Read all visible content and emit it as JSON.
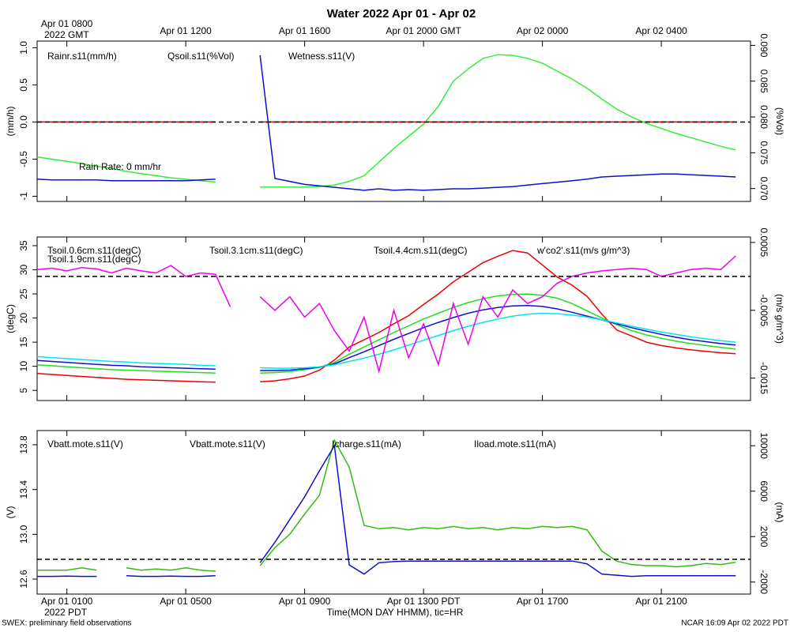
{
  "title": "Water 2022 Apr 01 - Apr 02",
  "xlabel": "Time(MON DAY HHMM), tic=HR",
  "footer_left": "SWEX: preliminary field observations",
  "footer_right": "NCAR 16:09 Apr 02 2022 PDT",
  "time_axis": {
    "xlim": [
      0,
      24
    ],
    "xticks": [
      {
        "value": 1,
        "label": "Apr 01 0100"
      },
      {
        "value": 5,
        "label": "Apr 01 0500"
      },
      {
        "value": 9,
        "label": "Apr 01 0900"
      },
      {
        "value": 13,
        "label": "Apr 01 1300 PDT"
      },
      {
        "value": 17,
        "label": "Apr 01 1700"
      },
      {
        "value": 21,
        "label": "Apr 01 2100"
      }
    ],
    "x_year_label": "2022 PDT",
    "x2ticks": [
      {
        "value": 1,
        "label": "Apr 01 0800"
      },
      {
        "value": 5,
        "label": "Apr 01 1200"
      },
      {
        "value": 9,
        "label": "Apr 01 1600"
      },
      {
        "value": 13,
        "label": "Apr 01 2000 GMT"
      },
      {
        "value": 17,
        "label": "Apr 02 0000"
      },
      {
        "value": 21,
        "label": "Apr 02 0400"
      }
    ],
    "x2_year_label": "2022 GMT"
  },
  "chart_data": [
    {
      "type": "line",
      "ylabel": "(mm/h)",
      "y2label": "(%Vol)",
      "ylim": [
        -1.07,
        1.09
      ],
      "yticks": [
        {
          "value": -1,
          "label": "-1"
        },
        -0.5,
        {
          "value": 0,
          "label": "0.0"
        },
        0.5,
        {
          "value": 1,
          "label": "1.0"
        }
      ],
      "y2lim": [
        0.0682,
        0.0906
      ],
      "y2ticks": [
        {
          "value": 0.07,
          "label": "0.070"
        },
        0.075,
        {
          "value": 0.08,
          "label": "0.080"
        },
        0.085,
        {
          "value": 0.09,
          "label": "0.090"
        }
      ],
      "zero_line": "y",
      "annotation": "Rain Rate: 0 mm/hr",
      "x": [
        0,
        0.5,
        1,
        1.5,
        2,
        2.5,
        3,
        3.5,
        4,
        4.5,
        5,
        5.5,
        6,
        6.5,
        7,
        7.5,
        8,
        8.5,
        9,
        9.5,
        10,
        10.5,
        11,
        11.5,
        12,
        12.5,
        13,
        13.5,
        14,
        14.5,
        15,
        15.5,
        16,
        16.5,
        17,
        17.5,
        18,
        18.5,
        19,
        19.5,
        20,
        20.5,
        21,
        21.5,
        22,
        22.5,
        23,
        23.5
      ],
      "series": [
        {
          "name": "Rainr.s11(mm/h)",
          "color": "#ee0000",
          "axis": "y",
          "values": [
            0,
            0,
            0,
            0,
            0,
            0,
            0,
            0,
            0,
            0,
            0,
            0,
            0,
            null,
            null,
            0,
            0,
            0,
            0,
            0,
            0,
            0,
            0,
            0,
            0,
            0,
            0,
            0,
            0,
            0,
            0,
            0,
            0,
            0,
            0,
            0,
            0,
            0,
            0,
            0,
            0,
            0,
            0,
            0,
            0,
            0,
            0,
            0
          ]
        },
        {
          "name": "Qsoil.s11(%Vol)",
          "color": "#33ee33",
          "axis": "y2",
          "values": [
            0.0744,
            0.0741,
            0.0738,
            0.0735,
            0.0731,
            0.0728,
            0.0724,
            0.0721,
            0.0718,
            0.0715,
            0.0713,
            0.0711,
            0.0709,
            null,
            null,
            0.0702,
            0.0702,
            0.0702,
            0.0702,
            0.0703,
            0.0705,
            0.071,
            0.0718,
            0.0737,
            0.0756,
            0.0773,
            0.079,
            0.0815,
            0.085,
            0.0867,
            0.0882,
            0.0887,
            0.0886,
            0.0882,
            0.0875,
            0.0864,
            0.0853,
            0.084,
            0.0825,
            0.0811,
            0.08,
            0.0791,
            0.0784,
            0.0777,
            0.0771,
            0.0765,
            0.0759,
            0.0754
          ]
        },
        {
          "name": "Wetness.s11(V)",
          "color": "#1010cc",
          "axis": "y",
          "values": [
            -0.77,
            -0.78,
            -0.78,
            -0.78,
            -0.78,
            -0.79,
            -0.79,
            -0.79,
            -0.79,
            -0.79,
            -0.79,
            -0.78,
            -0.77,
            null,
            null,
            0.9,
            -0.76,
            -0.8,
            -0.84,
            -0.86,
            -0.88,
            -0.9,
            -0.92,
            -0.9,
            -0.92,
            -0.91,
            -0.92,
            -0.91,
            -0.9,
            -0.9,
            -0.89,
            -0.88,
            -0.87,
            -0.85,
            -0.83,
            -0.81,
            -0.79,
            -0.77,
            -0.74,
            -0.73,
            -0.72,
            -0.71,
            -0.7,
            -0.7,
            -0.71,
            -0.72,
            -0.73,
            -0.74
          ]
        }
      ]
    },
    {
      "type": "line",
      "ylabel": "(degC)",
      "y2label": "(m/s g/m^3)",
      "ylim": [
        2.9,
        36.8
      ],
      "yticks": [
        5,
        10,
        15,
        20,
        25,
        30,
        35
      ],
      "y2lim": [
        -0.00183,
        0.00058
      ],
      "y2ticks": [
        -0.0015,
        -0.0005,
        0.0005
      ],
      "zero_line": "y2",
      "x": [
        0,
        0.5,
        1,
        1.5,
        2,
        2.5,
        3,
        3.5,
        4,
        4.5,
        5,
        5.5,
        6,
        6.5,
        7,
        7.5,
        8,
        8.5,
        9,
        9.5,
        10,
        10.5,
        11,
        11.5,
        12,
        12.5,
        13,
        13.5,
        14,
        14.5,
        15,
        15.5,
        16,
        16.5,
        17,
        17.5,
        18,
        18.5,
        19,
        19.5,
        20,
        20.5,
        21,
        21.5,
        22,
        22.5,
        23,
        23.5
      ],
      "series": [
        {
          "name": "Tsoil.0.6cm.s11(degC)",
          "color": "#ee0000",
          "axis": "y",
          "values": [
            8.5,
            8.3,
            8.1,
            7.9,
            7.7,
            7.5,
            7.3,
            7.2,
            7.1,
            7.0,
            6.9,
            6.8,
            6.7,
            null,
            null,
            6.8,
            7.0,
            7.4,
            8.0,
            9.2,
            11.3,
            14,
            15.5,
            17,
            18.8,
            20.5,
            22.8,
            25,
            27.5,
            29.5,
            31.5,
            32.8,
            34,
            33.5,
            31,
            28.5,
            26.8,
            24.5,
            20.8,
            17.5,
            16.3,
            15,
            14.3,
            13.8,
            13.4,
            13.1,
            12.8,
            12.6
          ]
        },
        {
          "name": "Tsoil.1.9cm.s11(degC)",
          "color": "#22dd22",
          "axis": "y",
          "values": [
            10.3,
            10.1,
            9.9,
            9.7,
            9.5,
            9.3,
            9.2,
            9.1,
            9.0,
            8.9,
            8.8,
            8.7,
            8.6,
            null,
            null,
            8.6,
            8.7,
            8.9,
            9.3,
            9.8,
            10.8,
            12.5,
            14,
            15.5,
            17,
            18.4,
            19.8,
            21.0,
            22.2,
            23.2,
            24.0,
            24.6,
            24.9,
            25.0,
            24.7,
            24.1,
            23.0,
            21.5,
            20.0,
            18.6,
            17.4,
            16.5,
            15.8,
            15.2,
            14.7,
            14.3,
            13.9,
            13.6
          ]
        },
        {
          "name": "Tsoil.3.1cm.s11(degC)",
          "color": "#1010cc",
          "axis": "y",
          "values": [
            11.2,
            11.0,
            10.8,
            10.6,
            10.4,
            10.2,
            10.1,
            9.9,
            9.8,
            9.7,
            9.6,
            9.5,
            9.4,
            null,
            null,
            9.1,
            9.1,
            9.2,
            9.5,
            9.8,
            10.5,
            11.8,
            13,
            14.3,
            15.6,
            16.8,
            18.0,
            19.1,
            20.1,
            21.0,
            21.7,
            22.2,
            22.5,
            22.6,
            22.4,
            21.9,
            21.2,
            20.4,
            19.6,
            18.8,
            18.0,
            17.3,
            16.6,
            16.0,
            15.5,
            15.1,
            14.7,
            14.4
          ]
        },
        {
          "name": "Tsoil.4.4cm.s11(degC)",
          "color": "#00e5ee",
          "axis": "y",
          "values": [
            12.0,
            11.8,
            11.6,
            11.4,
            11.2,
            11.0,
            10.9,
            10.7,
            10.6,
            10.5,
            10.4,
            10.2,
            10.1,
            null,
            null,
            9.7,
            9.6,
            9.6,
            9.7,
            9.9,
            10.3,
            11.0,
            11.7,
            12.5,
            13.4,
            14.4,
            15.4,
            16.4,
            17.4,
            18.3,
            19.1,
            19.8,
            20.4,
            20.8,
            21.0,
            20.9,
            20.6,
            20.2,
            19.6,
            19.0,
            18.3,
            17.7,
            17.1,
            16.6,
            16.1,
            15.7,
            15.3,
            15.0
          ]
        },
        {
          "name": "w'co2'.s11(m/s g/m^3)",
          "color": "#ee00ee",
          "axis": "y2",
          "values": [
            0.0001,
            0.00012,
            8e-05,
            0.00013,
            0.00011,
            5e-05,
            0.00012,
            8e-05,
            5e-05,
            0.00016,
            0.0,
            5e-05,
            3e-05,
            -0.00045,
            null,
            -0.0003,
            -0.0005,
            -0.0003,
            -0.0006,
            -0.0004,
            -0.0008,
            -0.0011,
            -0.0006,
            -0.0014,
            -0.0005,
            -0.0012,
            -0.0007,
            -0.0013,
            -0.0004,
            -0.001,
            -0.0003,
            -0.0006,
            -0.0002,
            -0.0004,
            -0.0003,
            -0.0001,
            0.0,
            5e-05,
            8e-05,
            0.0001,
            0.00012,
            0.0001,
            0.0,
            5e-05,
            0.0001,
            0.00012,
            0.0001,
            0.0003
          ]
        }
      ]
    },
    {
      "type": "line",
      "ylabel": "(V)",
      "y2label": "(mA)",
      "ylim": [
        12.466,
        13.927
      ],
      "yticks": [
        12.6,
        {
          "value": 13,
          "label": "13.0"
        },
        13.4,
        13.8
      ],
      "y2lim": [
        -3061,
        11339
      ],
      "y2ticks": [
        -2000,
        2000,
        6000,
        10000
      ],
      "zero_line": "y2",
      "x": [
        0,
        0.5,
        1,
        1.5,
        2,
        2.5,
        3,
        3.5,
        4,
        4.5,
        5,
        5.5,
        6,
        6.5,
        7,
        7.5,
        8,
        8.5,
        9,
        9.5,
        10,
        10.5,
        11,
        11.5,
        12,
        12.5,
        13,
        13.5,
        14,
        14.5,
        15,
        15.5,
        16,
        16.5,
        17,
        17.5,
        18,
        18.5,
        19,
        19.5,
        20,
        20.5,
        21,
        21.5,
        22,
        22.5,
        23,
        23.5
      ],
      "series": [
        {
          "name": "Vbatt.mote.s11(V)",
          "color": "#ee0000",
          "axis": "y",
          "values": [
            null,
            null,
            null,
            null,
            null,
            null,
            null,
            null,
            null,
            null,
            null,
            null,
            null,
            null,
            null,
            null,
            null,
            null,
            null,
            null,
            null,
            null,
            null,
            null,
            null,
            null,
            null,
            null,
            null,
            null,
            null,
            null,
            null,
            null,
            null,
            null,
            null,
            null,
            null,
            null,
            null,
            null,
            null,
            null,
            null,
            null,
            null,
            null
          ]
        },
        {
          "name": "Vbatt.mote.s11(V)",
          "color": "#33bb11",
          "axis": "y",
          "values": [
            12.68,
            12.68,
            12.68,
            12.7,
            12.68,
            null,
            12.7,
            12.68,
            12.69,
            12.68,
            12.7,
            12.68,
            12.67,
            null,
            null,
            12.72,
            12.88,
            13.0,
            13.18,
            13.35,
            13.84,
            13.6,
            13.08,
            13.05,
            13.06,
            13.04,
            13.06,
            13.05,
            13.07,
            13.05,
            13.06,
            13.04,
            13.06,
            13.05,
            13.07,
            13.06,
            13.07,
            13.04,
            12.85,
            12.76,
            12.73,
            12.72,
            12.72,
            12.71,
            12.72,
            12.74,
            12.73,
            12.75
          ]
        },
        {
          "name": "Icharge.s11(mA)",
          "color": "#1010cc",
          "axis": "y2",
          "values": [
            -1500,
            -1500,
            -1480,
            -1500,
            -1500,
            null,
            -1450,
            -1500,
            -1500,
            -1480,
            -1500,
            -1500,
            -1450,
            null,
            null,
            -300,
            1500,
            3500,
            5500,
            7800,
            10000,
            -500,
            -1300,
            -300,
            -200,
            -150,
            -150,
            -150,
            -150,
            -150,
            -150,
            -150,
            -150,
            -150,
            -150,
            -150,
            -150,
            -400,
            -1300,
            -1400,
            -1500,
            -1450,
            -1450,
            -1450,
            -1450,
            -1450,
            -1450,
            -1450
          ]
        },
        {
          "name": "Iload.mote.s11(mA)",
          "color": "#00e5ee",
          "axis": "y2",
          "values": [
            null,
            null,
            null,
            null,
            null,
            null,
            null,
            null,
            null,
            null,
            null,
            null,
            null,
            null,
            null,
            null,
            null,
            null,
            null,
            null,
            null,
            null,
            null,
            null,
            null,
            null,
            null,
            null,
            null,
            null,
            null,
            null,
            null,
            null,
            null,
            null,
            null,
            null,
            null,
            null,
            null,
            null,
            null,
            null,
            null,
            null,
            null,
            null
          ]
        }
      ]
    }
  ]
}
